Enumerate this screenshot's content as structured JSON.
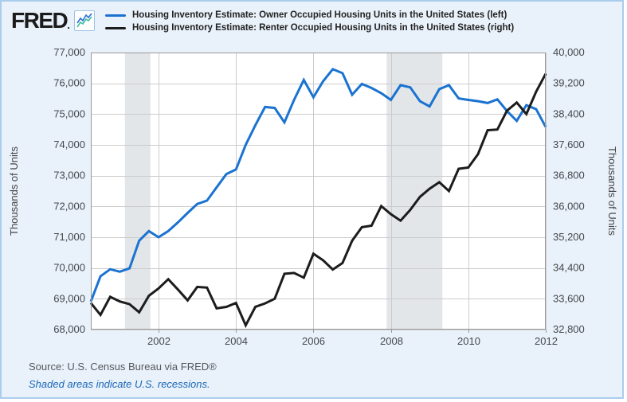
{
  "header": {
    "logo_text": "FRED",
    "logo_mark": ".",
    "logo_icon": "sparkline-chart-icon"
  },
  "footer": {
    "source": "Source: U.S. Census Bureau via FRED®",
    "note": "Shaded areas indicate U.S. recessions."
  },
  "colors": {
    "owner_line": "#1a73d1",
    "renter_line": "#1c1c1c",
    "grid": "#cccccc",
    "plot_border": "#999999",
    "recession_band": "#e3e6e9",
    "tick_text": "#43484d",
    "axis_title_text": "#444444",
    "background": "#e9f1fa"
  },
  "chart_data": {
    "type": "line",
    "x_range": [
      2000.25,
      2012.0
    ],
    "point_interval_years": 0.25,
    "first_point": "2000 Q2",
    "last_point": "2012 Q1",
    "x_ticks": {
      "values": [
        2002,
        2004,
        2006,
        2008,
        2010,
        2012
      ],
      "labels": [
        "2002",
        "2004",
        "2006",
        "2008",
        "2010",
        "2012"
      ]
    },
    "left_axis": {
      "title": "Thousands of Units",
      "min": 68000,
      "max": 77000,
      "step": 1000,
      "tick_labels": [
        "77,000",
        "76,000",
        "75,000",
        "74,000",
        "73,000",
        "72,000",
        "71,000",
        "70,000",
        "69,000",
        "68,000"
      ]
    },
    "right_axis": {
      "title": "Thousands of Units",
      "min": 32800,
      "max": 40000,
      "step": 800,
      "tick_labels": [
        "40,000",
        "39,200",
        "38,400",
        "37,600",
        "36,800",
        "36,000",
        "35,200",
        "34,400",
        "33,600",
        "32,800"
      ]
    },
    "recession_bands": [
      {
        "from": 2001.13,
        "to": 2001.79
      },
      {
        "from": 2007.89,
        "to": 2009.33
      }
    ],
    "grid": true,
    "legend_position": "top",
    "series": [
      {
        "name": "Housing Inventory Estimate: Owner Occupied Housing Units in the United States (left)",
        "axis": "left",
        "color": "#1a73d1",
        "values": [
          68910,
          69730,
          69960,
          69880,
          69990,
          70890,
          71200,
          71000,
          71200,
          71480,
          71790,
          72080,
          72190,
          72620,
          73050,
          73200,
          74000,
          74640,
          75230,
          75200,
          74730,
          75460,
          76110,
          75550,
          76070,
          76460,
          76330,
          75630,
          75980,
          75850,
          75680,
          75460,
          75940,
          75870,
          75420,
          75250,
          75810,
          75940,
          75510,
          75460,
          75420,
          75360,
          75480,
          75100,
          74780,
          75290,
          75160,
          74580
        ]
      },
      {
        "name": "Housing Inventory Estimate: Renter Occupied Housing Units in the United States (right)",
        "axis": "right",
        "color": "#1c1c1c",
        "values": [
          33490,
          33180,
          33650,
          33530,
          33460,
          33250,
          33680,
          33870,
          34110,
          33840,
          33560,
          33910,
          33890,
          33350,
          33390,
          33490,
          32910,
          33390,
          33480,
          33600,
          34250,
          34270,
          34150,
          34770,
          34600,
          34360,
          34530,
          35110,
          35460,
          35500,
          36010,
          35800,
          35630,
          35910,
          36250,
          36460,
          36630,
          36400,
          36980,
          37010,
          37360,
          37980,
          38000,
          38490,
          38700,
          38400,
          38980,
          39450
        ]
      }
    ]
  }
}
